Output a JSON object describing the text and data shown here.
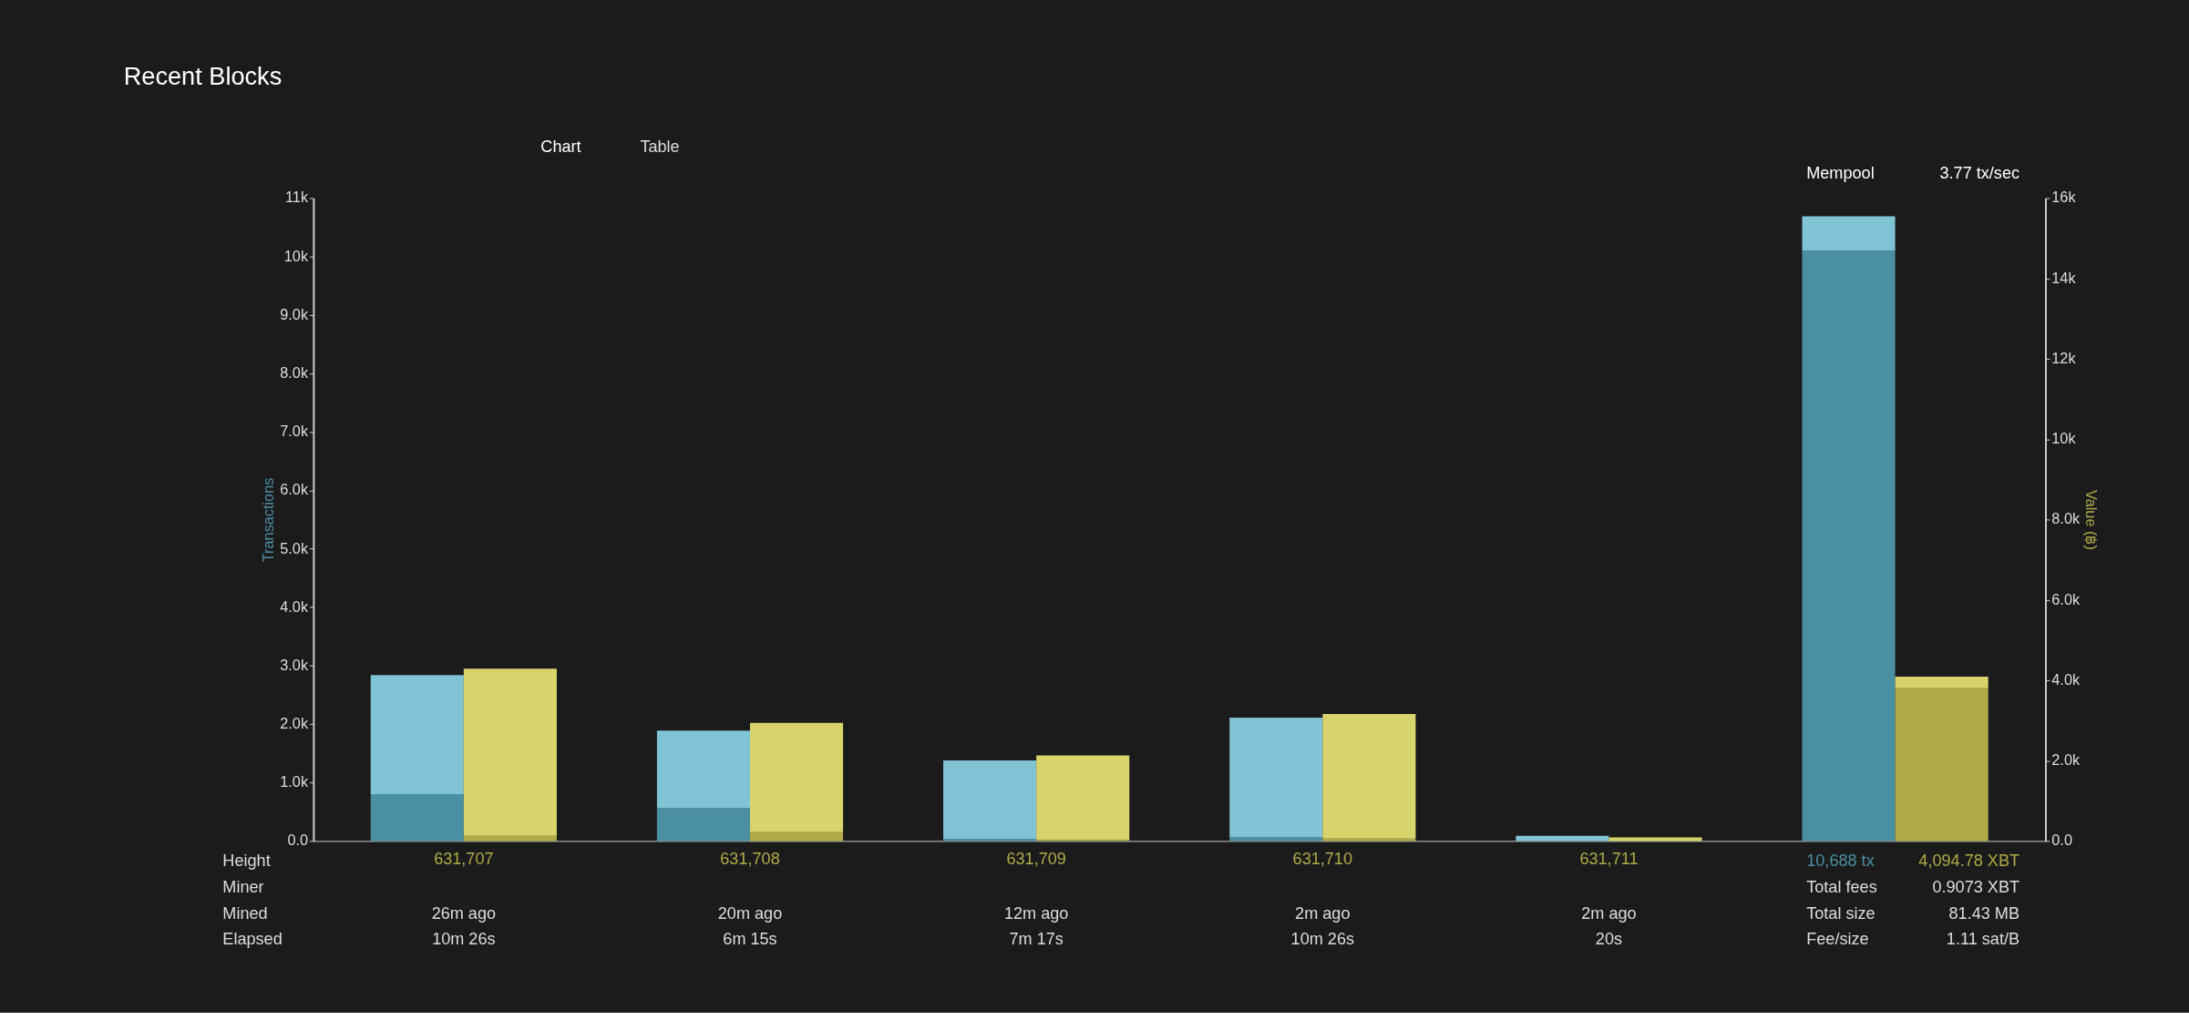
{
  "chart_data": {
    "type": "bar",
    "title": "Recent Blocks",
    "categories": [
      "631,707",
      "631,708",
      "631,709",
      "631,710",
      "631,711",
      null
    ],
    "stacked": true,
    "series": [
      {
        "color": "#4b8fa2",
        "axis": "y",
        "values": [
          800,
          560,
          40,
          60,
          0,
          10100
        ]
      },
      {
        "color": "#7fc3d5",
        "axis": "y",
        "values": [
          2040,
          1330,
          1340,
          2050,
          90,
          590
        ]
      },
      {
        "color": "#b0aa48",
        "axis": "y2",
        "values": [
          130,
          220,
          30,
          60,
          0,
          3800
        ]
      },
      {
        "color": "#d8d46c",
        "axis": "y2",
        "values": [
          4160,
          2720,
          2100,
          3100,
          90,
          290
        ]
      }
    ],
    "ylabel": "Transactions",
    "y2label": "Value (฿)",
    "ylim": [
      0,
      11000
    ],
    "yticks": [
      {
        "value": 0,
        "label": "0.0"
      },
      {
        "value": 1000,
        "label": "1.0k"
      },
      {
        "value": 2000,
        "label": "2.0k"
      },
      {
        "value": 3000,
        "label": "3.0k"
      },
      {
        "value": 4000,
        "label": "4.0k"
      },
      {
        "value": 5000,
        "label": "5.0k"
      },
      {
        "value": 6000,
        "label": "6.0k"
      },
      {
        "value": 7000,
        "label": "7.0k"
      },
      {
        "value": 8000,
        "label": "8.0k"
      },
      {
        "value": 9000,
        "label": "9.0k"
      },
      {
        "value": 10000,
        "label": "10k"
      },
      {
        "value": 11000,
        "label": "11k"
      }
    ],
    "y2lim": [
      0,
      16000
    ],
    "y2ticks": [
      {
        "value": 0,
        "label": "0.0"
      },
      {
        "value": 2000,
        "label": "2.0k"
      },
      {
        "value": 4000,
        "label": "4.0k"
      },
      {
        "value": 6000,
        "label": "6.0k"
      },
      {
        "value": 8000,
        "label": "8.0k"
      },
      {
        "value": 10000,
        "label": "10k"
      },
      {
        "value": 12000,
        "label": "12k"
      },
      {
        "value": 14000,
        "label": "14k"
      },
      {
        "value": 16000,
        "label": "16k"
      }
    ],
    "grid": false,
    "annotations": [
      "Chart",
      "Table",
      "Mempool",
      "3.77 tx/sec",
      "Height",
      "10,688 tx",
      "4,094.78 XBT",
      "Miner",
      "Total fees",
      "0.9073 XBT",
      "Mined",
      "26m ago",
      "20m ago",
      "12m ago",
      "2m ago",
      "2m ago",
      "Total size",
      "81.43 MB",
      "Elapsed",
      "10m 26s",
      "6m 15s",
      "7m 17s",
      "10m 26s",
      "20s",
      "Fee/size",
      "1.11 sat/B"
    ]
  }
}
